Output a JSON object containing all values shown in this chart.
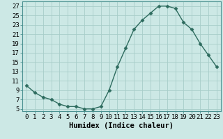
{
  "x": [
    0,
    1,
    2,
    3,
    4,
    5,
    6,
    7,
    8,
    9,
    10,
    11,
    12,
    13,
    14,
    15,
    16,
    17,
    18,
    19,
    20,
    21,
    22,
    23
  ],
  "y": [
    10,
    8.5,
    7.5,
    7,
    6,
    5.5,
    5.5,
    5,
    5,
    5.5,
    9,
    14,
    18,
    22,
    24,
    25.5,
    27,
    27,
    26.5,
    23.5,
    22,
    19,
    16.5,
    14
  ],
  "line_color": "#2d6b5e",
  "marker": "D",
  "marker_size": 2.5,
  "bg_color": "#cce8e5",
  "grid_color": "#a8cdc9",
  "xlabel": "Humidex (Indice chaleur)",
  "xlim": [
    -0.5,
    23.5
  ],
  "ylim": [
    4.5,
    28
  ],
  "yticks": [
    5,
    7,
    9,
    11,
    13,
    15,
    17,
    19,
    21,
    23,
    25,
    27
  ],
  "xticks": [
    0,
    1,
    2,
    3,
    4,
    5,
    6,
    7,
    8,
    9,
    10,
    11,
    12,
    13,
    14,
    15,
    16,
    17,
    18,
    19,
    20,
    21,
    22,
    23
  ],
  "xlabel_fontsize": 7.5,
  "tick_fontsize": 6.5,
  "line_width": 1.0
}
